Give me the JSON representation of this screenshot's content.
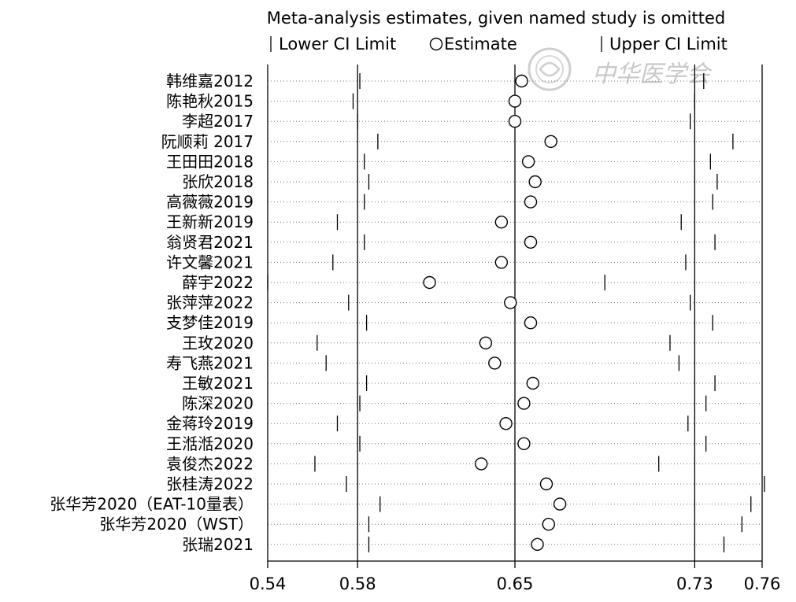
{
  "chart_data": {
    "type": "forest",
    "title": "Meta-analysis estimates, given named study is omitted",
    "legend": {
      "lower": "Lower CI Limit",
      "estimate": "Estimate",
      "upper": "Upper CI Limit",
      "placement": "top"
    },
    "xlim": [
      0.54,
      0.76
    ],
    "xticks": [
      0.54,
      0.58,
      0.65,
      0.73,
      0.76
    ],
    "xtick_labels": [
      "0.54",
      "0.58",
      "0.65",
      "0.73",
      "0.76"
    ],
    "reference_lines": [
      0.58,
      0.65,
      0.73
    ],
    "grid": false,
    "studies": [
      {
        "name": "韩维嘉2012",
        "lower": 0.581,
        "estimate": 0.653,
        "upper": 0.734
      },
      {
        "name": "陈艳秋2015",
        "lower": 0.578,
        "estimate": 0.65,
        "upper": 0.73
      },
      {
        "name": "李超2017",
        "lower": 0.58,
        "estimate": 0.65,
        "upper": 0.728
      },
      {
        "name": "阮顺莉 2017",
        "lower": 0.589,
        "estimate": 0.666,
        "upper": 0.747
      },
      {
        "name": "王田田2018",
        "lower": 0.583,
        "estimate": 0.656,
        "upper": 0.737
      },
      {
        "name": "张欣2018",
        "lower": 0.585,
        "estimate": 0.659,
        "upper": 0.74
      },
      {
        "name": "高薇薇2019",
        "lower": 0.583,
        "estimate": 0.657,
        "upper": 0.738
      },
      {
        "name": "王新新2019",
        "lower": 0.571,
        "estimate": 0.644,
        "upper": 0.724
      },
      {
        "name": "翁贤君2021",
        "lower": 0.583,
        "estimate": 0.657,
        "upper": 0.739
      },
      {
        "name": "许文馨2021",
        "lower": 0.569,
        "estimate": 0.644,
        "upper": 0.726
      },
      {
        "name": "薛宇2022",
        "lower": 0.54,
        "estimate": 0.612,
        "upper": 0.69
      },
      {
        "name": "张萍萍2022",
        "lower": 0.576,
        "estimate": 0.648,
        "upper": 0.728
      },
      {
        "name": "支梦佳2019",
        "lower": 0.584,
        "estimate": 0.657,
        "upper": 0.738
      },
      {
        "name": "王玫2020",
        "lower": 0.562,
        "estimate": 0.637,
        "upper": 0.719
      },
      {
        "name": "寿飞燕2021",
        "lower": 0.566,
        "estimate": 0.641,
        "upper": 0.723
      },
      {
        "name": "王敏2021",
        "lower": 0.584,
        "estimate": 0.658,
        "upper": 0.739
      },
      {
        "name": "陈深2020",
        "lower": 0.581,
        "estimate": 0.654,
        "upper": 0.735
      },
      {
        "name": "金蒋玲2019",
        "lower": 0.571,
        "estimate": 0.646,
        "upper": 0.727
      },
      {
        "name": "王湉湉2020",
        "lower": 0.581,
        "estimate": 0.654,
        "upper": 0.735
      },
      {
        "name": "袁俊杰2022",
        "lower": 0.561,
        "estimate": 0.635,
        "upper": 0.714
      },
      {
        "name": "张桂涛2022",
        "lower": 0.575,
        "estimate": 0.664,
        "upper": 0.761
      },
      {
        "name": "张华芳2020（EAT-10量表）",
        "lower": 0.59,
        "estimate": 0.67,
        "upper": 0.755
      },
      {
        "name": "张华芳2020（WST）",
        "lower": 0.585,
        "estimate": 0.665,
        "upper": 0.751
      },
      {
        "name": "张瑞2021",
        "lower": 0.585,
        "estimate": 0.66,
        "upper": 0.743
      }
    ]
  },
  "watermark": {
    "icon": "seal-logo-icon",
    "text": "中华医学会"
  }
}
